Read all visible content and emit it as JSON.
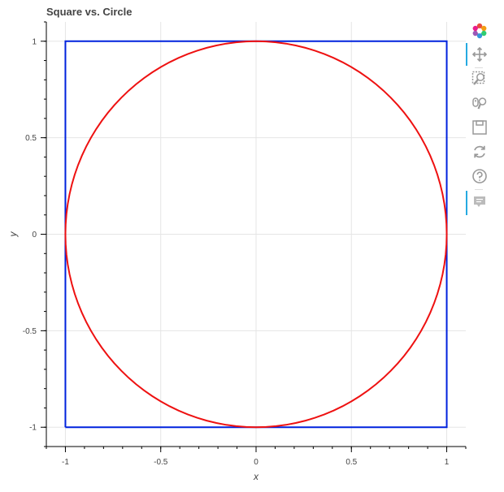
{
  "chart_data": {
    "type": "line",
    "title": "Square vs. Circle",
    "xlabel": "x",
    "ylabel": "y",
    "xlim": [
      -1.1,
      1.1
    ],
    "ylim": [
      -1.1,
      1.1
    ],
    "xticks": [
      -1,
      -0.5,
      0,
      0.5,
      1
    ],
    "yticks": [
      -1,
      -0.5,
      0,
      0.5,
      1
    ],
    "xtick_labels": [
      "-1",
      "-0.5",
      "0",
      "0.5",
      "1"
    ],
    "ytick_labels": [
      "-1",
      "-0.5",
      "0",
      "0.5",
      "1"
    ],
    "grid": true,
    "series": [
      {
        "color": "#0022dd",
        "shape": "square",
        "x": [
          -1,
          1,
          1,
          -1,
          -1
        ],
        "y": [
          -1,
          -1,
          1,
          1,
          -1
        ]
      },
      {
        "color": "#ee1111",
        "shape": "circle",
        "center": [
          0,
          0
        ],
        "radius": 1
      }
    ]
  },
  "toolbar": {
    "colors": {
      "active": "#26aae1",
      "icon": "#999999"
    },
    "items": [
      {
        "name": "bokeh-logo-icon",
        "interactable": false
      },
      {
        "name": "pan-icon",
        "interactable": true,
        "active": true
      },
      {
        "name": "box-zoom-icon",
        "interactable": true
      },
      {
        "name": "wheel-zoom-icon",
        "interactable": true
      },
      {
        "name": "save-icon",
        "interactable": true
      },
      {
        "name": "reset-icon",
        "interactable": true
      },
      {
        "name": "help-icon",
        "interactable": true
      },
      {
        "name": "hover-icon",
        "interactable": true,
        "active": true
      }
    ]
  }
}
